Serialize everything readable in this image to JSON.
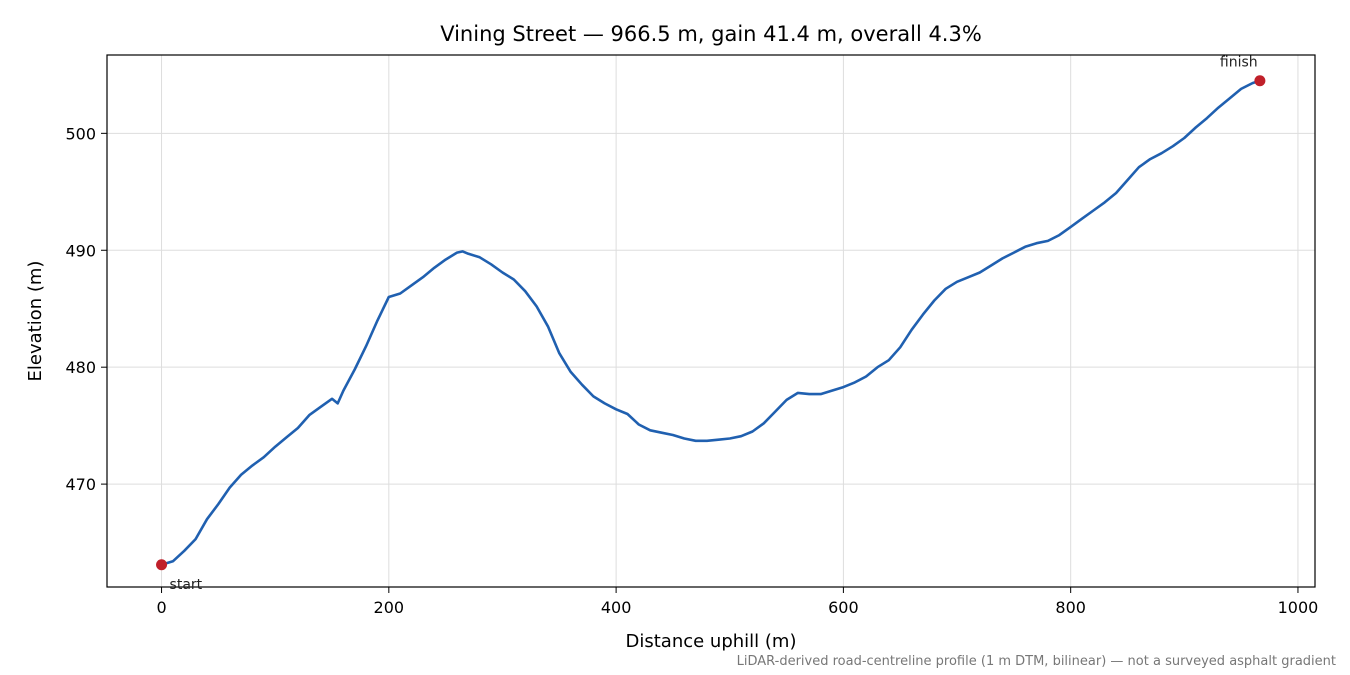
{
  "chart_data": {
    "type": "line",
    "title": "Vining Street — 966.5 m, gain 41.4 m, overall 4.3%",
    "xlabel": "Distance uphill (m)",
    "ylabel": "Elevation (m)",
    "xlim": [
      -48,
      1015
    ],
    "ylim": [
      461.2,
      506.7
    ],
    "xticks": [
      0,
      200,
      400,
      600,
      800,
      1000
    ],
    "yticks": [
      470,
      480,
      490,
      500
    ],
    "grid": true,
    "line_color": "#2060b0",
    "marker_color": "#c0202a",
    "series": [
      {
        "x": [
          0,
          10,
          20,
          30,
          40,
          50,
          60,
          70,
          80,
          90,
          100,
          110,
          120,
          130,
          140,
          150,
          155,
          160,
          170,
          180,
          190,
          200,
          210,
          220,
          230,
          240,
          250,
          260,
          265,
          270,
          280,
          290,
          300,
          310,
          320,
          330,
          340,
          350,
          360,
          370,
          380,
          390,
          400,
          410,
          420,
          430,
          440,
          450,
          460,
          470,
          480,
          490,
          500,
          510,
          520,
          530,
          540,
          550,
          560,
          570,
          580,
          590,
          600,
          610,
          620,
          630,
          640,
          650,
          660,
          670,
          680,
          690,
          700,
          710,
          720,
          730,
          740,
          750,
          760,
          770,
          780,
          790,
          800,
          810,
          820,
          830,
          840,
          850,
          860,
          870,
          880,
          890,
          900,
          910,
          920,
          930,
          940,
          950,
          960,
          966.5
        ],
        "y": [
          463.1,
          463.4,
          464.3,
          465.3,
          467.0,
          468.3,
          469.7,
          470.8,
          471.6,
          472.3,
          473.2,
          474.0,
          474.8,
          475.9,
          476.6,
          477.3,
          476.9,
          478.0,
          479.8,
          481.8,
          484.0,
          486.0,
          486.3,
          487.0,
          487.7,
          488.5,
          489.2,
          489.8,
          489.9,
          489.7,
          489.4,
          488.8,
          488.1,
          487.5,
          486.5,
          485.2,
          483.5,
          481.2,
          479.6,
          478.5,
          477.5,
          476.9,
          476.4,
          476.0,
          475.1,
          474.6,
          474.4,
          474.2,
          473.9,
          473.7,
          473.7,
          473.8,
          473.9,
          474.1,
          474.5,
          475.2,
          476.2,
          477.2,
          477.8,
          477.7,
          477.7,
          478.0,
          478.3,
          478.7,
          479.2,
          480.0,
          480.6,
          481.7,
          483.2,
          484.5,
          485.7,
          486.7,
          487.3,
          487.7,
          488.1,
          488.7,
          489.3,
          489.8,
          490.3,
          490.6,
          490.8,
          491.3,
          492.0,
          492.7,
          493.4,
          494.1,
          494.9,
          496.0,
          497.1,
          497.8,
          498.3,
          498.9,
          499.6,
          500.5,
          501.3,
          502.2,
          503.0,
          503.8,
          504.3,
          504.5
        ]
      }
    ],
    "annotations": [
      {
        "text": "start",
        "x": 0,
        "y": 463.1
      },
      {
        "text": "finish",
        "x": 966.5,
        "y": 504.5
      }
    ],
    "footnote": "LiDAR-derived road-centreline profile (1 m DTM, bilinear) — not a surveyed asphalt gradient"
  }
}
